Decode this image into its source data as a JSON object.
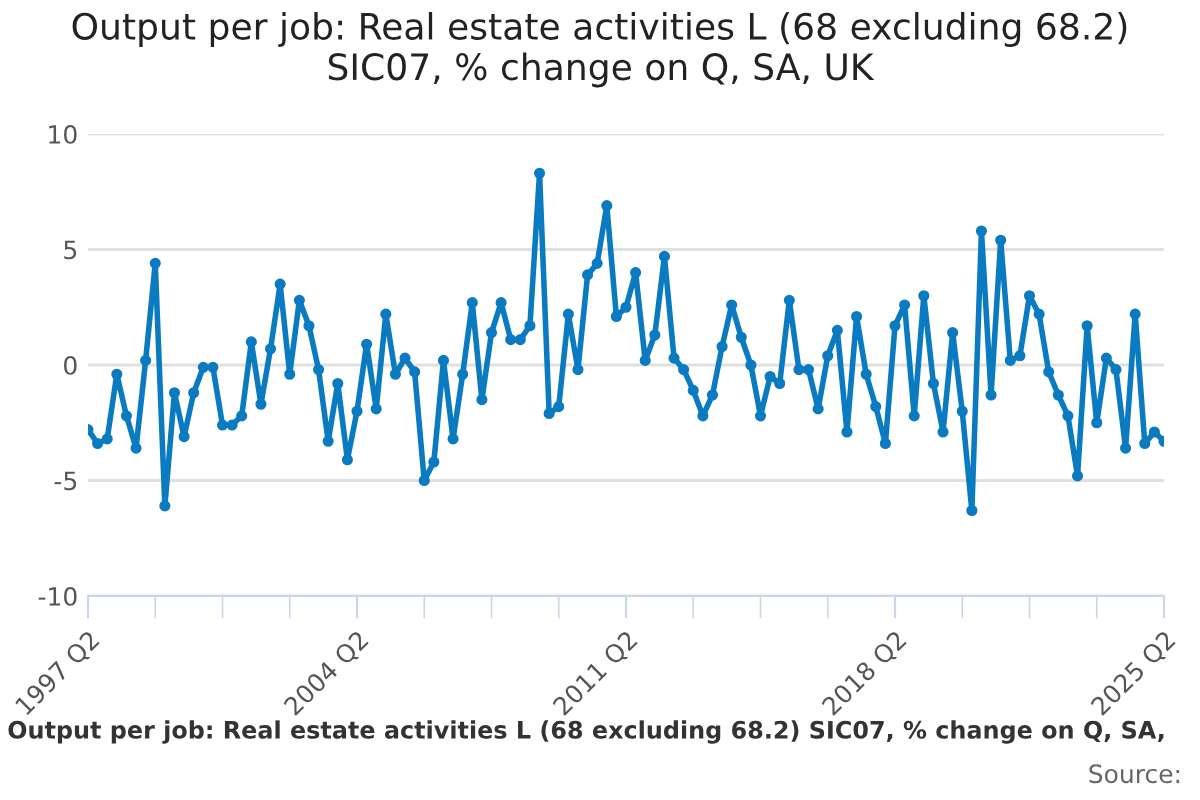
{
  "chart_data": {
    "type": "line",
    "title": "Output per job: Real estate activities L (68 excluding 68.2)\nSIC07, % change on Q, SA, UK",
    "annotations": [
      "Output per job: Real estate activities L (68 excluding 68.2) SIC07, % change on Q, SA,",
      "Source:"
    ],
    "categories": [
      "1997 Q2",
      null,
      null,
      null,
      null,
      null,
      null,
      null,
      null,
      null,
      null,
      null,
      null,
      null,
      null,
      null,
      null,
      null,
      null,
      null,
      null,
      null,
      null,
      null,
      null,
      null,
      null,
      null,
      "2004 Q2",
      null,
      null,
      null,
      null,
      null,
      null,
      null,
      null,
      null,
      null,
      null,
      null,
      null,
      null,
      null,
      null,
      null,
      null,
      null,
      null,
      null,
      null,
      null,
      null,
      null,
      null,
      null,
      "2011 Q2",
      null,
      null,
      null,
      null,
      null,
      null,
      null,
      null,
      null,
      null,
      null,
      null,
      null,
      null,
      null,
      null,
      null,
      null,
      null,
      null,
      null,
      null,
      null,
      null,
      null,
      null,
      null,
      "2018 Q2",
      null,
      null,
      null,
      null,
      null,
      null,
      null,
      null,
      null,
      null,
      null,
      null,
      null,
      null,
      null,
      null,
      null,
      null,
      null,
      null,
      null,
      null,
      null,
      null,
      null,
      null,
      null,
      "2025 Q2"
    ],
    "series": [
      {
        "color": "#0b7bc1",
        "values": [
          -2.8,
          -3.4,
          -3.2,
          -0.4,
          -2.2,
          -3.6,
          0.2,
          4.4,
          -6.1,
          -1.2,
          -3.1,
          -1.2,
          -0.1,
          -0.1,
          -2.6,
          -2.6,
          -2.2,
          1.0,
          -1.7,
          0.7,
          3.5,
          -0.4,
          2.8,
          1.7,
          -0.2,
          -3.3,
          -0.8,
          -4.1,
          -2.0,
          0.9,
          -1.9,
          2.2,
          -0.4,
          0.3,
          -0.3,
          -5.0,
          -4.2,
          0.2,
          -3.2,
          -0.4,
          2.7,
          -1.5,
          1.4,
          2.7,
          1.1,
          1.1,
          1.7,
          8.3,
          -2.1,
          -1.8,
          2.2,
          -0.2,
          3.9,
          4.4,
          6.9,
          2.1,
          2.5,
          4.0,
          0.2,
          1.3,
          4.7,
          0.3,
          -0.2,
          -1.1,
          -2.2,
          -1.3,
          0.8,
          2.6,
          1.2,
          0.0,
          -2.2,
          -0.5,
          -0.8,
          2.8,
          -0.2,
          -0.2,
          -1.9,
          0.4,
          1.5,
          -2.9,
          2.1,
          -0.4,
          -1.8,
          -3.4,
          1.7,
          2.6,
          -2.2,
          3.0,
          -0.8,
          -2.9,
          1.4,
          -2.0,
          -6.3,
          5.8,
          -1.3,
          5.4,
          0.2,
          0.4,
          3.0,
          2.2,
          -0.3,
          -1.3,
          -2.2,
          -4.8,
          1.7,
          -2.5,
          0.3,
          -0.2,
          -3.6,
          2.2,
          -3.4,
          -2.9,
          -3.3
        ]
      }
    ],
    "ylim": [
      -10,
      10
    ],
    "yticks": [
      -10,
      -5,
      0,
      5,
      10
    ],
    "grid": "y",
    "marker": "circle",
    "line_style": "solid"
  }
}
